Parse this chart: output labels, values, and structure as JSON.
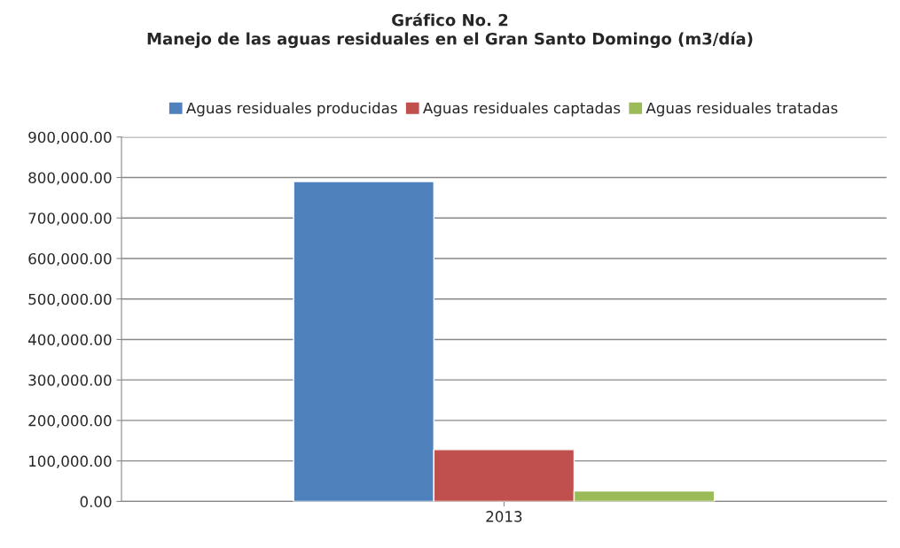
{
  "chart_data": {
    "type": "bar",
    "title": "Gráfico No. 2\nManejo de las aguas residuales en el Gran Santo Domingo (m3/día)",
    "categories": [
      "2013"
    ],
    "series": [
      {
        "name": "Aguas residuales producidas",
        "color": "#4f81bd",
        "values": [
          790000
        ]
      },
      {
        "name": "Aguas residuales captadas",
        "color": "#c0504d",
        "values": [
          128000
        ]
      },
      {
        "name": "Aguas residuales tratadas",
        "color": "#9bbb59",
        "values": [
          26000
        ]
      }
    ],
    "ylim": [
      0,
      900000
    ],
    "yticks": [
      {
        "value": 0,
        "label": "0.00"
      },
      {
        "value": 100000,
        "label": "100,000.00"
      },
      {
        "value": 200000,
        "label": "200,000.00"
      },
      {
        "value": 300000,
        "label": "300,000.00"
      },
      {
        "value": 400000,
        "label": "400,000.00"
      },
      {
        "value": 500000,
        "label": "500,000.00"
      },
      {
        "value": 600000,
        "label": "600,000.00"
      },
      {
        "value": 700000,
        "label": "700,000.00"
      },
      {
        "value": 800000,
        "label": "800,000.00"
      },
      {
        "value": 900000,
        "label": "900,000.00"
      }
    ],
    "grid": "y",
    "legend": "top"
  }
}
